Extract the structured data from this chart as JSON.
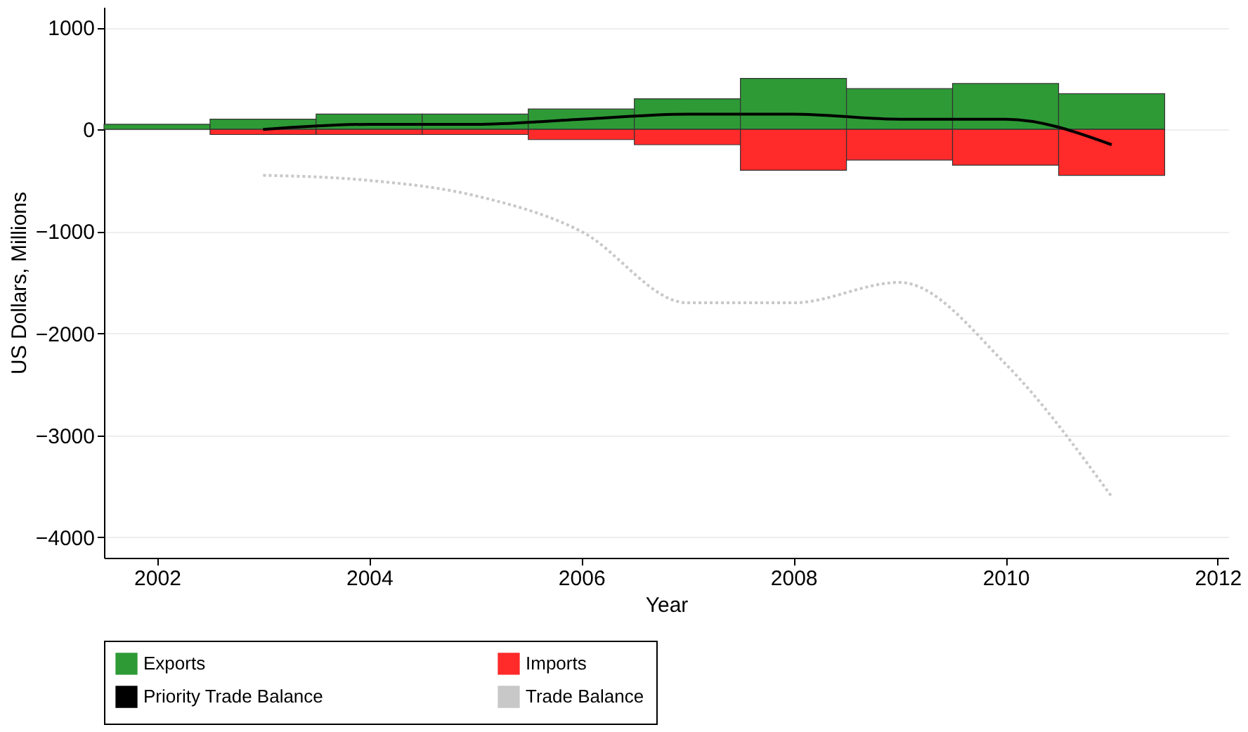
{
  "chart_data": {
    "type": "bar",
    "stacked": true,
    "xlabel": "Year",
    "ylabel": "US Dollars, Millions",
    "x": [
      2002,
      2003,
      2004,
      2005,
      2006,
      2007,
      2008,
      2009,
      2010,
      2011
    ],
    "series": [
      {
        "name": "Exports",
        "color": "#2e9a36",
        "values": [
          50,
          100,
          150,
          150,
          200,
          300,
          500,
          400,
          450,
          350
        ]
      },
      {
        "name": "Imports",
        "color": "#ff2a2a",
        "values": [
          null,
          -50,
          -50,
          -50,
          -100,
          -150,
          -400,
          -300,
          -350,
          -450
        ]
      },
      {
        "name": "Priority Trade Balance",
        "type": "line",
        "color": "#000000",
        "line_style": "solid",
        "x": [
          2003,
          2004,
          2005,
          2006,
          2007,
          2008,
          2009,
          2010,
          2011
        ],
        "values": [
          0,
          50,
          50,
          100,
          150,
          150,
          100,
          100,
          -150
        ]
      },
      {
        "name": "Trade Balance",
        "type": "line",
        "color": "#c8c8c8",
        "line_style": "dotted",
        "x": [
          2003,
          2004,
          2005,
          2006,
          2007,
          2008,
          2009,
          2010,
          2011
        ],
        "values": [
          -450,
          -500,
          -650,
          -1000,
          -1700,
          -1700,
          -1500,
          -2300,
          -3600
        ]
      }
    ],
    "xlim": [
      2001.5,
      2012.1
    ],
    "xticks": [
      2002,
      2004,
      2006,
      2008,
      2010,
      2012
    ],
    "ylim": [
      -4200,
      1200
    ],
    "yticks": [
      -4000,
      -3000,
      -2000,
      -1000,
      0,
      1000
    ],
    "grid": "y",
    "legend": "bottom",
    "marker": "none"
  }
}
